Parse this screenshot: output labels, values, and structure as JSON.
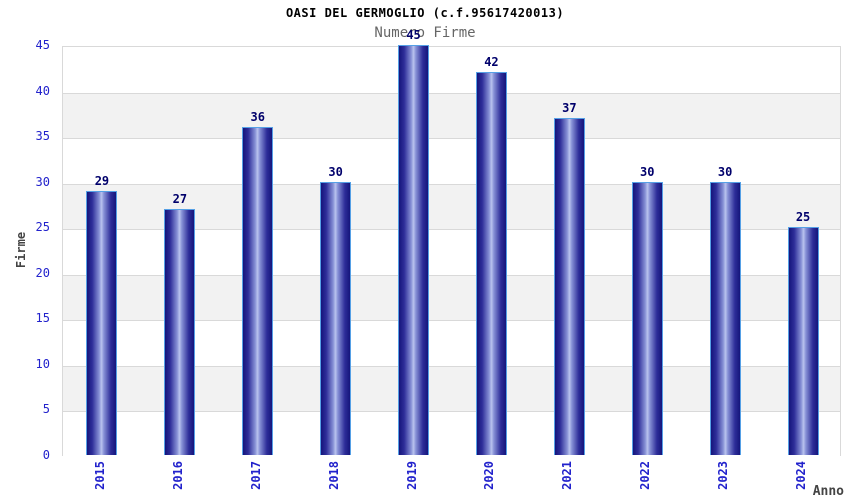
{
  "chart": {
    "title": "OASI DEL GERMOGLIO (c.f.95617420013)",
    "subtitle": "Numero Firme"
  },
  "chart_data": {
    "type": "bar",
    "title": "OASI DEL GERMOGLIO (c.f.95617420013)",
    "subtitle": "Numero Firme",
    "categories": [
      "2015",
      "2016",
      "2017",
      "2018",
      "2019",
      "2020",
      "2021",
      "2022",
      "2023",
      "2024"
    ],
    "values": [
      29,
      27,
      36,
      30,
      45,
      42,
      37,
      30,
      30,
      25
    ],
    "xlabel": "Anno",
    "ylabel": "Firme",
    "ylim": [
      0,
      45
    ],
    "ytick_step": 5,
    "yticks": [
      0,
      5,
      10,
      15,
      20,
      25,
      30,
      35,
      40,
      45
    ],
    "grid": true,
    "legend": "none",
    "colors": {
      "background": "#ffffff",
      "title": "#000000",
      "subtitle": "#666666",
      "axis_title": "#444444",
      "tick_label": "#2222cc",
      "value_label": "#00006b",
      "grid_line": "#d9d9d9",
      "band_light": "#ffffff",
      "band_dark": "#f2f2f2",
      "bar_border": "#55a0e6",
      "bar_gradient": [
        "#15157b",
        "#2e2e99",
        "#8791d6",
        "#bac3ee",
        "#8791d6",
        "#2e2e99",
        "#15157b"
      ],
      "bar_gradient_stops": [
        0,
        18,
        42,
        50,
        58,
        82,
        100
      ]
    }
  }
}
